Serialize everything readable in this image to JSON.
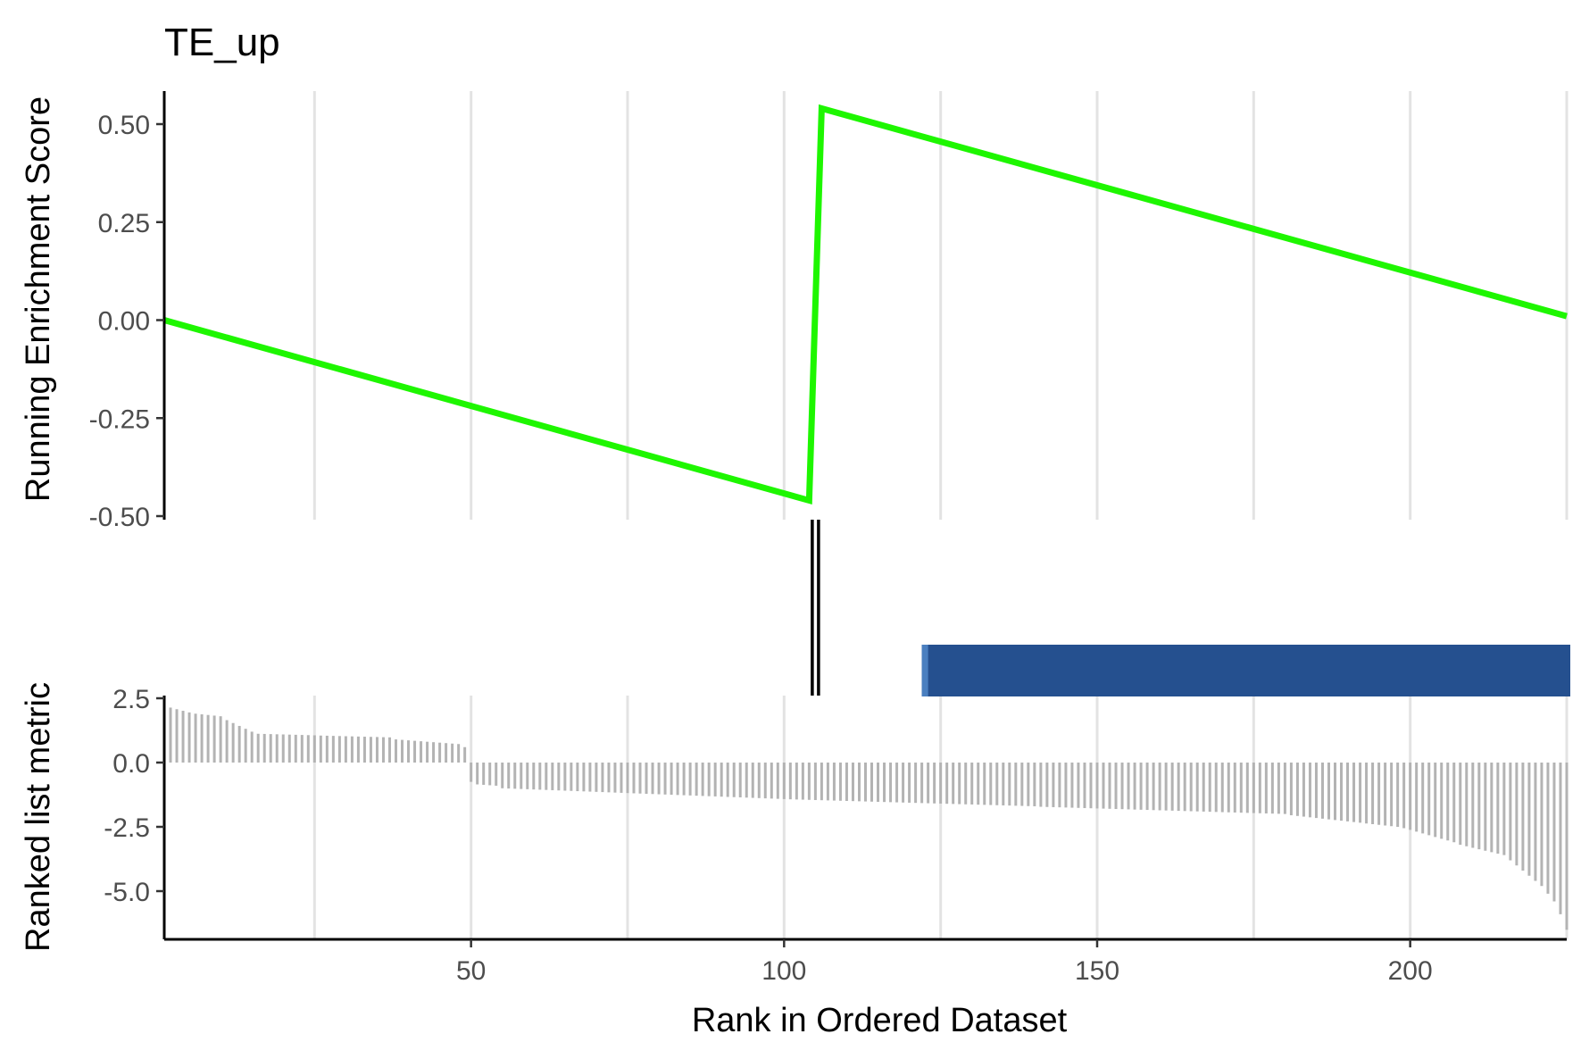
{
  "chart_data": [
    {
      "type": "line",
      "title": "TE_up",
      "ylabel": "Running Enrichment Score",
      "xlim": [
        1,
        225
      ],
      "ylim": [
        -0.5,
        0.58
      ],
      "yticks": [
        0.5,
        0.25,
        0.0,
        -0.25,
        -0.5
      ],
      "ytick_labels": [
        "0.50",
        "0.25",
        "0.00",
        "-0.25",
        "-0.50"
      ],
      "xgrid_major": [
        50,
        100,
        150,
        200
      ],
      "xgrid_minor": [
        25,
        75,
        125,
        175,
        225
      ],
      "grid": "vertical",
      "series": [
        {
          "color": "#1ef600",
          "x": [
            1,
            104,
            106,
            225
          ],
          "y": [
            0.0,
            -0.46,
            0.54,
            0.01
          ]
        }
      ]
    },
    {
      "type": "bar",
      "name": "gene-set-hits",
      "positions": [
        104.5,
        105.5
      ],
      "color": "#000000",
      "heatmap_band": {
        "x_start": 122,
        "x_end": 225,
        "color": "#25508f",
        "edge_color": "#4a7fc0"
      }
    },
    {
      "type": "bar",
      "ylabel": "Ranked list metric",
      "xlabel": "Rank in Ordered Dataset",
      "xlim": [
        1,
        225
      ],
      "ylim": [
        -6.6,
        2.5
      ],
      "yticks": [
        2.5,
        0.0,
        -2.5,
        -5.0
      ],
      "ytick_labels": [
        "2.5",
        "0.0",
        "-2.5",
        "-5.0"
      ],
      "xticks": [
        50,
        100,
        150,
        200
      ],
      "xtick_labels": [
        "50",
        "100",
        "150",
        "200"
      ],
      "bar_color": "#b3b3b3",
      "segments": [
        {
          "x_start": 1,
          "x_end": 5,
          "y_start": 2.2,
          "y_end": 1.95
        },
        {
          "x_start": 6,
          "x_end": 10,
          "y_start": 1.9,
          "y_end": 1.8
        },
        {
          "x_start": 11,
          "x_end": 15,
          "y_start": 1.65,
          "y_end": 1.2
        },
        {
          "x_start": 16,
          "x_end": 25,
          "y_start": 1.12,
          "y_end": 1.06
        },
        {
          "x_start": 26,
          "x_end": 37,
          "y_start": 1.05,
          "y_end": 0.98
        },
        {
          "x_start": 38,
          "x_end": 48,
          "y_start": 0.9,
          "y_end": 0.72
        },
        {
          "x_start": 49,
          "x_end": 49,
          "y_start": 0.6,
          "y_end": 0.6
        },
        {
          "x_start": 50,
          "x_end": 50,
          "y_start": -0.75,
          "y_end": -0.75
        },
        {
          "x_start": 51,
          "x_end": 54,
          "y_start": -0.85,
          "y_end": -0.9
        },
        {
          "x_start": 55,
          "x_end": 100,
          "y_start": -1.0,
          "y_end": -1.42
        },
        {
          "x_start": 101,
          "x_end": 140,
          "y_start": -1.43,
          "y_end": -1.7
        },
        {
          "x_start": 141,
          "x_end": 180,
          "y_start": -1.72,
          "y_end": -2.0
        },
        {
          "x_start": 181,
          "x_end": 198,
          "y_start": -2.05,
          "y_end": -2.5
        },
        {
          "x_start": 199,
          "x_end": 207,
          "y_start": -2.55,
          "y_end": -3.1
        },
        {
          "x_start": 208,
          "x_end": 215,
          "y_start": -3.2,
          "y_end": -3.6
        },
        {
          "x_start": 216,
          "x_end": 220,
          "y_start": -3.8,
          "y_end": -4.6
        },
        {
          "x_start": 221,
          "x_end": 223,
          "y_start": -4.8,
          "y_end": -5.4
        },
        {
          "x_start": 224,
          "x_end": 225,
          "y_start": -5.9,
          "y_end": -6.5
        }
      ]
    }
  ]
}
